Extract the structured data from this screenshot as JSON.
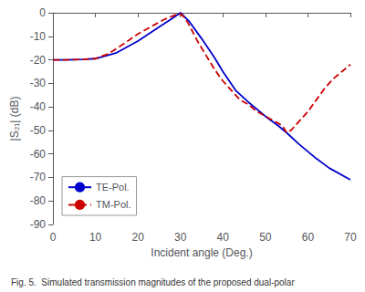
{
  "chart_data": {
    "type": "line",
    "xlabel": "Incident angle (Deg.)",
    "ylabel": "|S₂₁| (dB)",
    "annotations": [
      "Fig. 5.  Simulated transmission magnitudes of the proposed dual-polar"
    ],
    "xlim": [
      0,
      70
    ],
    "ylim": [
      -90,
      0
    ],
    "xticks": [
      0,
      10,
      20,
      30,
      40,
      50,
      60,
      70
    ],
    "yticks": [
      0,
      -10,
      -20,
      -30,
      -40,
      -50,
      -60,
      -70,
      -80,
      -90
    ],
    "grid": false,
    "legend": "lower left",
    "series": [
      {
        "name": "TE-Pol.",
        "color": "#0000cc",
        "line_style": "solid",
        "marker": "none",
        "x": [
          0,
          3,
          7,
          10,
          15,
          20,
          25,
          28,
          30,
          32,
          35,
          38,
          40,
          43,
          46,
          50,
          53,
          55,
          58,
          62,
          65,
          70
        ],
        "values": [
          -20,
          -20,
          -19.8,
          -19.5,
          -17,
          -12,
          -6,
          -2.5,
          0,
          -3.5,
          -11,
          -19,
          -25,
          -33,
          -38,
          -44,
          -48,
          -51,
          -56,
          -62,
          -66,
          -71
        ]
      },
      {
        "name": "TM-Pol.",
        "color": "#cc0000",
        "line_style": "dashed",
        "marker": "none",
        "x": [
          0,
          3,
          7,
          10,
          13,
          16,
          18,
          20,
          22,
          24,
          26,
          28,
          29,
          30,
          31,
          32,
          34,
          36,
          38,
          40,
          42,
          44,
          46,
          48,
          50,
          52,
          53,
          54,
          55,
          56,
          57,
          58,
          60,
          62,
          64,
          66,
          68,
          70
        ],
        "values": [
          -20,
          -20,
          -19.8,
          -19.5,
          -17.5,
          -14,
          -11.5,
          -9,
          -7,
          -5,
          -3,
          -1.5,
          -0.8,
          -0.5,
          -2,
          -5,
          -12,
          -18,
          -24,
          -29,
          -33,
          -37,
          -39,
          -42,
          -44,
          -46,
          -47,
          -48,
          -51,
          -50,
          -48,
          -46,
          -42,
          -37,
          -32,
          -28,
          -25,
          -22
        ]
      }
    ]
  }
}
